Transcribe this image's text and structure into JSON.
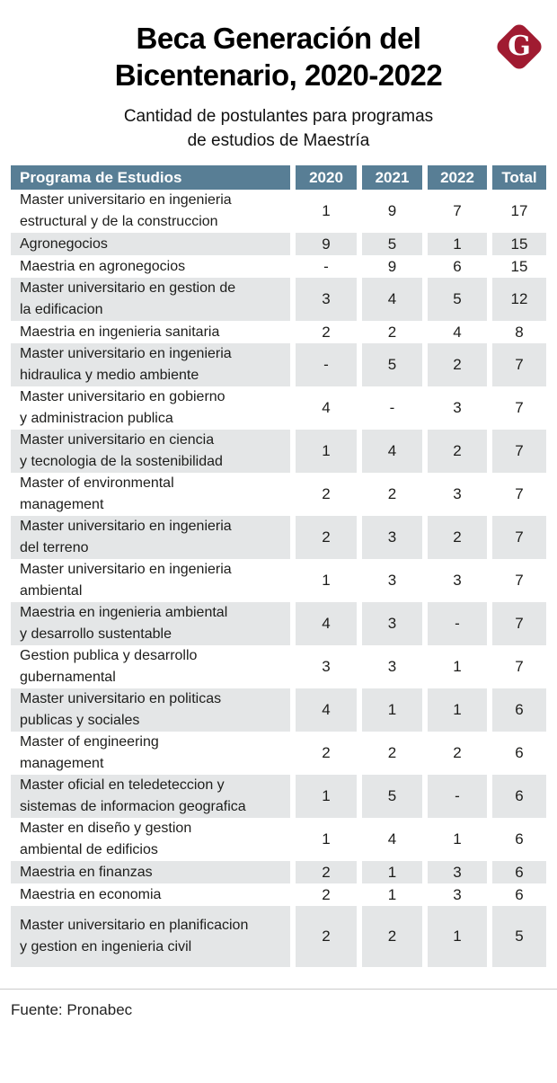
{
  "header": {
    "title": "Beca Generación del\nBicentenario, 2020-2022",
    "logo_letter": "G"
  },
  "subtitle": "Cantidad de postulantes para programas\nde estudios de Maestría",
  "footer": {
    "source": "Fuente: Pronabec"
  },
  "colors": {
    "header_row_bg": "#587e95",
    "stripe_bg": "#e4e6e7",
    "logo_red": "#a01b31",
    "text": "#1d1d1b"
  },
  "chart_data": {
    "type": "table",
    "title": "Beca Generación del Bicentenario, 2020-2022",
    "subtitle": "Cantidad de postulantes para programas de estudios de Maestría",
    "columns": [
      "Programa de Estudios",
      "2020",
      "2021",
      "2022",
      "Total"
    ],
    "rows": [
      {
        "program": "Master universitario en ingenieria\nestructural y de la construccion",
        "values": [
          "1",
          "9",
          "7",
          "17"
        ]
      },
      {
        "program": "Agronegocios",
        "values": [
          "9",
          "5",
          "1",
          "15"
        ]
      },
      {
        "program": "Maestria en agronegocios",
        "values": [
          "-",
          "9",
          "6",
          "15"
        ]
      },
      {
        "program": "Master universitario en gestion de\nla edificacion",
        "values": [
          "3",
          "4",
          "5",
          "12"
        ]
      },
      {
        "program": "Maestria en ingenieria sanitaria",
        "values": [
          "2",
          "2",
          "4",
          "8"
        ]
      },
      {
        "program": "Master universitario en ingenieria\nhidraulica y medio ambiente",
        "values": [
          "-",
          "5",
          "2",
          "7"
        ]
      },
      {
        "program": "Master universitario en gobierno\ny administracion publica",
        "values": [
          "4",
          "-",
          "3",
          "7"
        ]
      },
      {
        "program": "Master universitario en ciencia\ny tecnologia de la sostenibilidad",
        "values": [
          "1",
          "4",
          "2",
          "7"
        ]
      },
      {
        "program": "Master of environmental\nmanagement",
        "values": [
          "2",
          "2",
          "3",
          "7"
        ]
      },
      {
        "program": "Master universitario en ingenieria\ndel terreno",
        "values": [
          "2",
          "3",
          "2",
          "7"
        ]
      },
      {
        "program": "Master universitario en ingenieria\nambiental",
        "values": [
          "1",
          "3",
          "3",
          "7"
        ]
      },
      {
        "program": "Maestria en ingenieria ambiental\ny desarrollo sustentable",
        "values": [
          "4",
          "3",
          "-",
          "7"
        ]
      },
      {
        "program": "Gestion publica y desarrollo\ngubernamental",
        "values": [
          "3",
          "3",
          "1",
          "7"
        ]
      },
      {
        "program": "Master universitario en politicas\npublicas y sociales",
        "values": [
          "4",
          "1",
          "1",
          "6"
        ]
      },
      {
        "program": "Master of engineering\nmanagement",
        "values": [
          "2",
          "2",
          "2",
          "6"
        ]
      },
      {
        "program": "Master oficial en teledeteccion y\nsistemas de informacion geografica",
        "values": [
          "1",
          "5",
          "-",
          "6"
        ]
      },
      {
        "program": "Master en diseño y gestion\nambiental de edificios",
        "values": [
          "1",
          "4",
          "1",
          "6"
        ]
      },
      {
        "program": "Maestria en finanzas",
        "values": [
          "2",
          "1",
          "3",
          "6"
        ]
      },
      {
        "program": "Maestria en economia",
        "values": [
          "2",
          "1",
          "3",
          "6"
        ]
      },
      {
        "program": "Master universitario en planificacion\ny gestion en ingenieria civil",
        "values": [
          "2",
          "2",
          "1",
          "5"
        ]
      }
    ],
    "source": "Fuente: Pronabec",
    "legend_position": "none",
    "grid": false
  }
}
